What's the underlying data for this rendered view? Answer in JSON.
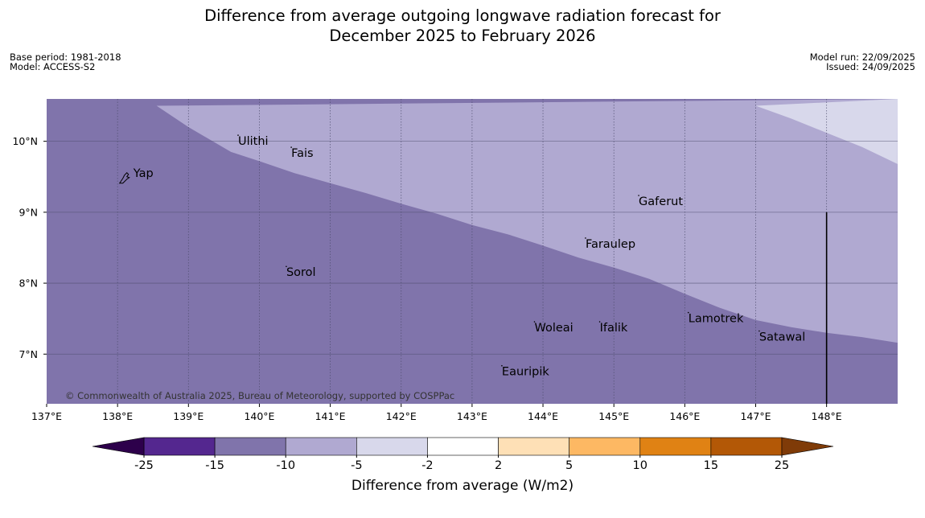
{
  "header": {
    "title_line1": "Difference from average outgoing longwave radiation forecast for",
    "title_line2": "December 2025 to February 2026",
    "base_period": "Base period: 1981-2018",
    "model": "Model: ACCESS-S2",
    "model_run": "Model run: 22/09/2025",
    "issued": "Issued: 24/09/2025"
  },
  "map": {
    "lon_range": [
      137,
      149
    ],
    "lat_range": [
      6.3,
      10.5
    ],
    "lon_ticks": [
      {
        "value": 137,
        "label": "137°E"
      },
      {
        "value": 138,
        "label": "138°E"
      },
      {
        "value": 139,
        "label": "139°E"
      },
      {
        "value": 140,
        "label": "140°E"
      },
      {
        "value": 141,
        "label": "141°E"
      },
      {
        "value": 142,
        "label": "142°E"
      },
      {
        "value": 143,
        "label": "143°E"
      },
      {
        "value": 144,
        "label": "144°E"
      },
      {
        "value": 145,
        "label": "145°E"
      },
      {
        "value": 146,
        "label": "146°E"
      },
      {
        "value": 147,
        "label": "147°E"
      },
      {
        "value": 148,
        "label": "148°E"
      }
    ],
    "lat_ticks": [
      {
        "value": 10,
        "label": "10°N"
      },
      {
        "value": 9,
        "label": "9°N"
      },
      {
        "value": 8,
        "label": "8°N"
      },
      {
        "value": 7,
        "label": "7°N"
      }
    ],
    "colors": {
      "lt_m15": "#8074ab",
      "m10_m5": "#b0a9d1",
      "m5_m2": "#d8d8eb",
      "grid": "#4a4a6a",
      "border": "#000000"
    },
    "contour_m10": [
      [
        138.55,
        10.5
      ],
      [
        139.0,
        10.2
      ],
      [
        139.6,
        9.85
      ],
      [
        140.0,
        9.72
      ],
      [
        140.5,
        9.55
      ],
      [
        141.0,
        9.41
      ],
      [
        141.5,
        9.27
      ],
      [
        142.0,
        9.12
      ],
      [
        142.5,
        8.98
      ],
      [
        143.0,
        8.82
      ],
      [
        143.5,
        8.69
      ],
      [
        144.0,
        8.53
      ],
      [
        144.5,
        8.36
      ],
      [
        145.0,
        8.22
      ],
      [
        145.5,
        8.06
      ],
      [
        146.0,
        7.85
      ],
      [
        146.5,
        7.65
      ],
      [
        147.0,
        7.48
      ],
      [
        147.5,
        7.38
      ],
      [
        148.0,
        7.3
      ],
      [
        148.5,
        7.24
      ],
      [
        149.0,
        7.16
      ]
    ],
    "contour_m5": [
      [
        147.0,
        10.5
      ],
      [
        147.5,
        10.32
      ],
      [
        148.0,
        10.12
      ],
      [
        148.5,
        9.92
      ],
      [
        149.0,
        9.68
      ]
    ],
    "boundary_line": {
      "lon": 148.0,
      "lat_top": 9.0
    },
    "islands": [
      {
        "name": "Yap",
        "lon": 138.12,
        "lat": 9.5,
        "shape": true
      },
      {
        "name": "Ulithi",
        "lon": 139.7,
        "lat": 9.95
      },
      {
        "name": "Fais",
        "lon": 140.45,
        "lat": 9.78
      },
      {
        "name": "Gaferut",
        "lon": 145.35,
        "lat": 9.1
      },
      {
        "name": "Faraulep",
        "lon": 144.6,
        "lat": 8.5
      },
      {
        "name": "Sorol",
        "lon": 140.38,
        "lat": 8.1
      },
      {
        "name": "Woleai",
        "lon": 143.88,
        "lat": 7.32
      },
      {
        "name": "Ifalik",
        "lon": 144.8,
        "lat": 7.32
      },
      {
        "name": "Lamotrek",
        "lon": 146.05,
        "lat": 7.45
      },
      {
        "name": "Satawal",
        "lon": 147.05,
        "lat": 7.19
      },
      {
        "name": "Eauripik",
        "lon": 143.42,
        "lat": 6.7
      }
    ],
    "copyright": "© Commonwealth of Australia 2025, Bureau of Meteorology, supported by COSPPac"
  },
  "colorbar": {
    "label": "Difference from average (W/m2)",
    "bounds": [
      "-25",
      "-15",
      "-10",
      "-5",
      "-2",
      "2",
      "5",
      "10",
      "15",
      "25"
    ],
    "colors": [
      "#54278f",
      "#8074ab",
      "#b0a9d1",
      "#d8d8eb",
      "#ffffff",
      "#fee0b6",
      "#fdb863",
      "#e08214",
      "#b35806"
    ],
    "extend_low": "#2d004b",
    "extend_high": "#7f3b08"
  }
}
